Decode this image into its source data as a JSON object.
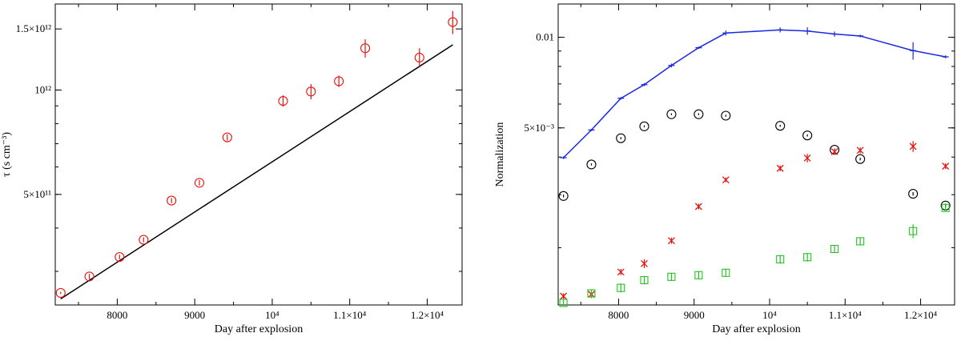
{
  "chart_data": [
    {
      "type": "scatter",
      "title": "",
      "xlabel": "Day after explosion",
      "ylabel": "τ (s cm⁻³)",
      "xlim": [
        7200,
        12450
      ],
      "ylim": [
        240000000000.0,
        1770000000000.0
      ],
      "yscale": "log",
      "x_ticks": [
        {
          "value": 8000,
          "label": "8000"
        },
        {
          "value": 9000,
          "label": "9000"
        },
        {
          "value": 10000,
          "label": "10⁴"
        },
        {
          "value": 11000,
          "label": "1.1×10⁴"
        },
        {
          "value": 12000,
          "label": "1.2×10⁴"
        }
      ],
      "y_ticks": [
        {
          "value": 500000000000.0,
          "label": "5×10¹¹"
        },
        {
          "value": 1000000000000.0,
          "label": "10¹²"
        },
        {
          "value": 1500000000000.0,
          "label": "1.5×10¹²"
        }
      ],
      "series": [
        {
          "name": "tau",
          "color": "#e8140e",
          "marker": "circle",
          "x": [
            7270,
            7640,
            8030,
            8340,
            8700,
            9060,
            9420,
            10140,
            10500,
            10860,
            11200,
            11900,
            12330
          ],
          "y": [
            260000000000.0,
            290000000000.0,
            330000000000.0,
            370000000000.0,
            480000000000.0,
            540000000000.0,
            730000000000.0,
            930000000000.0,
            990000000000.0,
            1060000000000.0,
            1320000000000.0,
            1240000000000.0,
            1570000000000.0
          ],
          "yerr": [
            2000000000.0,
            5000000000.0,
            5000000000.0,
            6000000000.0,
            8000000000.0,
            10000000000.0,
            15000000000.0,
            35000000000.0,
            50000000000.0,
            40000000000.0,
            80000000000.0,
            80000000000.0,
            120000000000.0
          ]
        }
      ],
      "fit_line": {
        "color": "#000000",
        "x": [
          7270,
          12330
        ],
        "y": [
          250000000000.0,
          1350000000000.0
        ]
      }
    },
    {
      "type": "line",
      "title": "",
      "xlabel": "Day after explosion",
      "ylabel": "Normalization",
      "xlim": [
        7200,
        12450
      ],
      "ylim": [
        0.00129,
        0.0129
      ],
      "yscale": "log",
      "x_ticks": [
        {
          "value": 8000,
          "label": "8000"
        },
        {
          "value": 9000,
          "label": "9000"
        },
        {
          "value": 10000,
          "label": "10⁴"
        },
        {
          "value": 11000,
          "label": "1.1×10⁴"
        },
        {
          "value": 12000,
          "label": "1.2×10⁴"
        }
      ],
      "y_ticks": [
        {
          "value": 0.005,
          "label": "5×10⁻³"
        },
        {
          "value": 0.01,
          "label": "0.01"
        }
      ],
      "series": [
        {
          "name": "blue",
          "color": "#1a28e0",
          "marker": "plus",
          "connect": true,
          "x": [
            7270,
            7640,
            8030,
            8340,
            8700,
            9060,
            9420,
            10140,
            10500,
            10860,
            11200,
            11900,
            12330
          ],
          "y": [
            0.00398,
            0.00492,
            0.00627,
            0.00696,
            0.00806,
            0.00923,
            0.01033,
            0.01058,
            0.01049,
            0.01025,
            0.0101,
            0.00903,
            0.00861
          ],
          "yerr": [
            4e-05,
            4e-05,
            6e-05,
            8e-05,
            0.00012,
            8e-05,
            0.0002,
            0.0002,
            0.0003,
            0.0002,
            0.0001,
            0.0006,
            0.0001
          ]
        },
        {
          "name": "black",
          "color": "#000000",
          "marker": "circle",
          "x": [
            7270,
            7640,
            8030,
            8340,
            8700,
            9060,
            9420,
            10140,
            10500,
            10860,
            11200,
            11900,
            12330
          ],
          "y": [
            0.00297,
            0.00378,
            0.00462,
            0.00506,
            0.00555,
            0.00555,
            0.00549,
            0.00508,
            0.00472,
            0.00423,
            0.00394,
            0.00302,
            0.00276
          ],
          "yerr": [
            3e-05,
            3e-05,
            4e-05,
            4e-05,
            4e-05,
            4e-05,
            4e-05,
            4e-05,
            4e-05,
            4e-05,
            4e-05,
            4e-05,
            4e-05
          ]
        },
        {
          "name": "red",
          "color": "#e8140e",
          "marker": "cross",
          "x": [
            7270,
            7640,
            8030,
            8340,
            8700,
            9060,
            9420,
            10140,
            10500,
            10860,
            11200,
            11900,
            12330
          ],
          "y": [
            0.00138,
            0.0014,
            0.00166,
            0.00177,
            0.00211,
            0.00274,
            0.00336,
            0.00367,
            0.00397,
            0.00417,
            0.00421,
            0.00434,
            0.00373
          ],
          "yerr": [
            3e-05,
            4e-05,
            4e-05,
            6e-05,
            5e-05,
            6e-05,
            6e-05,
            8e-05,
            0.00013,
            0.0001,
            0.0001,
            0.00018,
            8e-05
          ]
        },
        {
          "name": "green",
          "color": "#22c422",
          "marker": "square",
          "x": [
            7270,
            7640,
            8030,
            8340,
            8700,
            9060,
            9420,
            10140,
            10500,
            10860,
            11200,
            11900,
            12330
          ],
          "y": [
            0.00131,
            0.00141,
            0.00147,
            0.00156,
            0.0016,
            0.00162,
            0.00165,
            0.00183,
            0.00186,
            0.00198,
            0.0021,
            0.00227,
            0.00271
          ],
          "yerr": [
            3e-05,
            4e-05,
            5e-05,
            5e-05,
            5e-05,
            5e-05,
            5e-05,
            6e-05,
            6e-05,
            6e-05,
            6e-05,
            0.00012,
            6e-05
          ]
        }
      ]
    }
  ]
}
